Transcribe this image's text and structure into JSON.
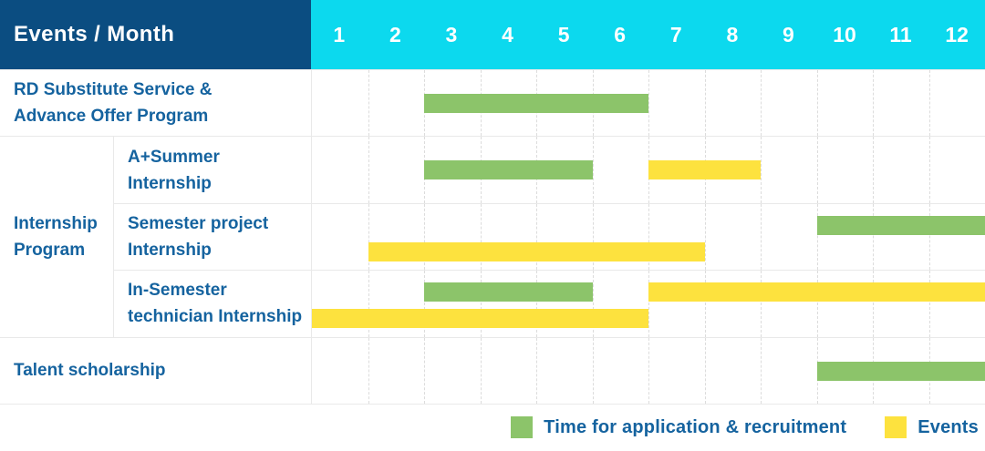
{
  "ui": {
    "corner_label": "Events / Month",
    "legend": {
      "items": [
        {
          "label": "Time for application & recruitment",
          "color_key": "green"
        },
        {
          "label": "Events",
          "color_key": "yellow"
        }
      ]
    }
  },
  "colors": {
    "header_bg": "#0b4d81",
    "months_bg": "#0cd9ee",
    "label_text": "#15639f",
    "green": "#8cc46a",
    "yellow": "#fde23e",
    "grid_line": "#e9e9e9",
    "grid_dash": "#dcdcdc"
  },
  "chart_data": {
    "type": "gantt",
    "title": "Events / Month",
    "x_axis": {
      "unit": "month",
      "range": [
        1,
        12
      ],
      "ticks": [
        "1",
        "2",
        "3",
        "4",
        "5",
        "6",
        "7",
        "8",
        "9",
        "10",
        "11",
        "12"
      ]
    },
    "legend": [
      {
        "series": "Time for application & recruitment",
        "color": "#8cc46a"
      },
      {
        "series": "Events",
        "color": "#fde23e"
      }
    ],
    "group": {
      "label": "Internship Program",
      "label_lines": [
        "Internship",
        "Program"
      ],
      "row_indexes": [
        1,
        2,
        3
      ]
    },
    "rows": [
      {
        "label": "RD Substitute Service & Advance Offer Program",
        "label_lines": [
          "RD Substitute Service &",
          "Advance Offer Program"
        ],
        "grouped": false,
        "bars": [
          {
            "series": "Time for application & recruitment",
            "color": "green",
            "start_month": 3,
            "end_month": 6,
            "lane": "mid"
          }
        ]
      },
      {
        "label": "A+Summer Internship",
        "label_lines": [
          "A+Summer",
          "Internship"
        ],
        "grouped": true,
        "bars": [
          {
            "series": "Time for application & recruitment",
            "color": "green",
            "start_month": 3,
            "end_month": 5,
            "lane": "mid"
          },
          {
            "series": "Events",
            "color": "yellow",
            "start_month": 7,
            "end_month": 8,
            "lane": "mid"
          }
        ]
      },
      {
        "label": "Semester project Internship",
        "label_lines": [
          "Semester project",
          "Internship"
        ],
        "grouped": true,
        "bars": [
          {
            "series": "Time for application & recruitment",
            "color": "green",
            "start_month": 10,
            "end_month": 12,
            "lane": "top"
          },
          {
            "series": "Events",
            "color": "yellow",
            "start_month": 2,
            "end_month": 7,
            "lane": "bottom"
          }
        ]
      },
      {
        "label": "In-Semester technician Internship",
        "label_lines": [
          "In-Semester",
          "technician Internship"
        ],
        "grouped": true,
        "bars": [
          {
            "series": "Time for application & recruitment",
            "color": "green",
            "start_month": 3,
            "end_month": 5,
            "lane": "top"
          },
          {
            "series": "Events",
            "color": "yellow",
            "start_month": 7,
            "end_month": 12,
            "lane": "top"
          },
          {
            "series": "Events",
            "color": "yellow",
            "start_month": 1,
            "end_month": 6,
            "lane": "bottom"
          }
        ]
      },
      {
        "label": "Talent scholarship",
        "label_lines": [
          "Talent scholarship"
        ],
        "grouped": false,
        "bars": [
          {
            "series": "Time for application & recruitment",
            "color": "green",
            "start_month": 10,
            "end_month": 12,
            "lane": "mid"
          }
        ]
      }
    ]
  }
}
